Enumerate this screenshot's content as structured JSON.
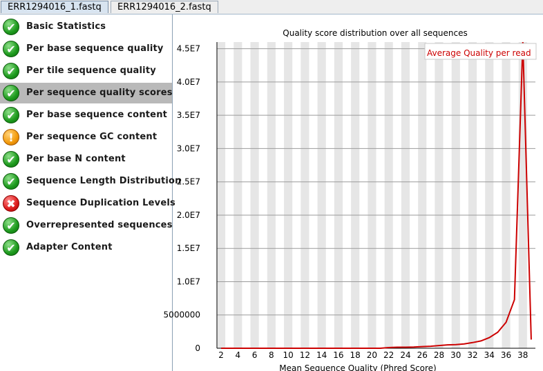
{
  "tabs": [
    {
      "label": "ERR1294016_1.fastq",
      "active": true
    },
    {
      "label": "ERR1294016_2.fastq",
      "active": false
    }
  ],
  "modules": [
    {
      "label": "Basic Statistics",
      "status": "pass",
      "icon": "check-icon"
    },
    {
      "label": "Per base sequence quality",
      "status": "pass",
      "icon": "check-icon"
    },
    {
      "label": "Per tile sequence quality",
      "status": "pass",
      "icon": "check-icon"
    },
    {
      "label": "Per sequence quality scores",
      "status": "pass",
      "icon": "check-icon",
      "selected": true
    },
    {
      "label": "Per base sequence content",
      "status": "pass",
      "icon": "check-icon"
    },
    {
      "label": "Per sequence GC content",
      "status": "warn",
      "icon": "warning-icon"
    },
    {
      "label": "Per base N content",
      "status": "pass",
      "icon": "check-icon"
    },
    {
      "label": "Sequence Length Distribution",
      "status": "pass",
      "icon": "check-icon"
    },
    {
      "label": "Sequence Duplication Levels",
      "status": "fail",
      "icon": "cross-icon"
    },
    {
      "label": "Overrepresented sequences",
      "status": "pass",
      "icon": "check-icon"
    },
    {
      "label": "Adapter Content",
      "status": "pass",
      "icon": "check-icon"
    }
  ],
  "chart_data": {
    "type": "line",
    "title": "Quality score distribution over all sequences",
    "xlabel": "Mean Sequence Quality (Phred Score)",
    "ylabel": "",
    "x_ticks": [
      2,
      4,
      6,
      8,
      10,
      12,
      14,
      16,
      18,
      20,
      22,
      24,
      26,
      28,
      30,
      32,
      34,
      36,
      38
    ],
    "y_ticks": [
      {
        "value": 0,
        "label": "0"
      },
      {
        "value": 5000000,
        "label": "5000000"
      },
      {
        "value": 10000000,
        "label": "1.0E7"
      },
      {
        "value": 15000000,
        "label": "1.5E7"
      },
      {
        "value": 20000000,
        "label": "2.0E7"
      },
      {
        "value": 25000000,
        "label": "2.5E7"
      },
      {
        "value": 30000000,
        "label": "3.0E7"
      },
      {
        "value": 35000000,
        "label": "3.5E7"
      },
      {
        "value": 40000000,
        "label": "4.0E7"
      },
      {
        "value": 45000000,
        "label": "4.5E7"
      }
    ],
    "xlim": [
      1.5,
      39.5
    ],
    "ylim": [
      0,
      46000000
    ],
    "grid": true,
    "legend": "top-right",
    "series": [
      {
        "name": "Average Quality per read",
        "color": "#cc0000",
        "x": [
          2,
          3,
          4,
          5,
          6,
          7,
          8,
          9,
          10,
          11,
          12,
          13,
          14,
          15,
          16,
          17,
          18,
          19,
          20,
          21,
          22,
          23,
          24,
          25,
          26,
          27,
          28,
          29,
          30,
          31,
          32,
          33,
          34,
          35,
          36,
          37,
          38,
          39
        ],
        "y": [
          0,
          0,
          0,
          0,
          0,
          0,
          0,
          0,
          0,
          0,
          0,
          0,
          0,
          0,
          0,
          0,
          0,
          0,
          0,
          0,
          100000,
          150000,
          150000,
          180000,
          250000,
          300000,
          400000,
          500000,
          550000,
          650000,
          850000,
          1100000,
          1600000,
          2400000,
          3900000,
          7300000,
          46000000,
          1300000
        ]
      }
    ]
  }
}
